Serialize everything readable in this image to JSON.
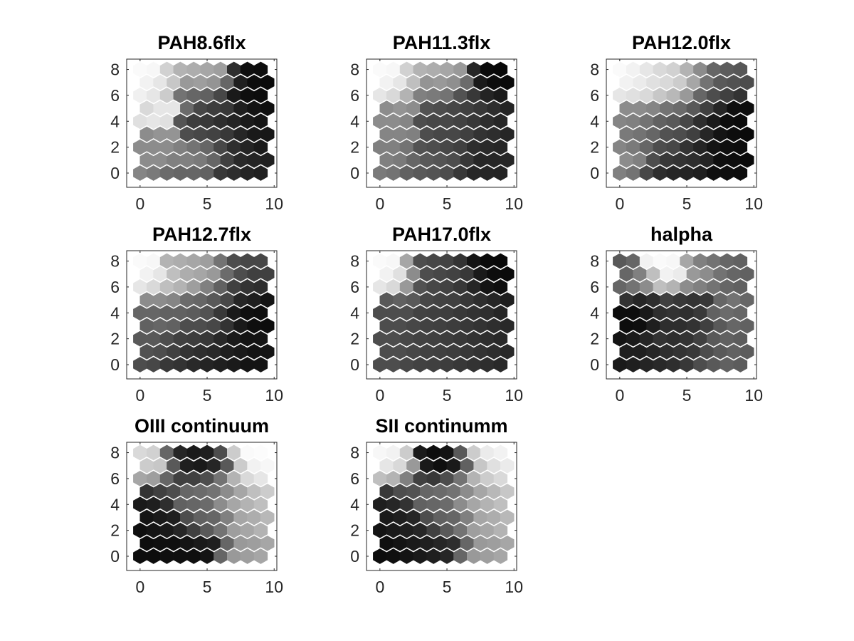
{
  "chart_data": {
    "type": "heatmap",
    "layout": "3x3 grid of hexagonal self-organizing-map component planes (grayscale)",
    "colormap": "gray",
    "grid_size": [
      10,
      9
    ],
    "xlim": [
      -1,
      10.2
    ],
    "ylim": [
      -1.1,
      8.8
    ],
    "xticks": [
      0,
      5,
      10
    ],
    "yticks": [
      0,
      2,
      4,
      6,
      8
    ],
    "panels": [
      {
        "title": "PAH8.6flx",
        "rows": [
          [
            0.98,
            0.97,
            0.82,
            0.7,
            0.68,
            0.65,
            0.62,
            0.18,
            0.06,
            0.05
          ],
          [
            0.95,
            0.9,
            0.78,
            0.6,
            0.62,
            0.58,
            0.4,
            0.12,
            0.05,
            0.04
          ],
          [
            0.94,
            0.9,
            0.8,
            0.45,
            0.4,
            0.38,
            0.28,
            0.1,
            0.06,
            0.05
          ],
          [
            0.85,
            0.9,
            0.9,
            0.42,
            0.28,
            0.24,
            0.22,
            0.12,
            0.08,
            0.06
          ],
          [
            0.88,
            0.9,
            0.88,
            0.33,
            0.24,
            0.22,
            0.18,
            0.14,
            0.1,
            0.08
          ],
          [
            0.55,
            0.58,
            0.58,
            0.3,
            0.28,
            0.26,
            0.22,
            0.15,
            0.1,
            0.09
          ],
          [
            0.55,
            0.55,
            0.55,
            0.5,
            0.45,
            0.4,
            0.28,
            0.18,
            0.14,
            0.1
          ],
          [
            0.55,
            0.55,
            0.5,
            0.5,
            0.48,
            0.4,
            0.25,
            0.16,
            0.14,
            0.12
          ],
          [
            0.52,
            0.48,
            0.42,
            0.4,
            0.4,
            0.38,
            0.22,
            0.18,
            0.14,
            0.12
          ]
        ]
      },
      {
        "title": "PAH11.3flx",
        "rows": [
          [
            0.98,
            0.97,
            0.82,
            0.7,
            0.68,
            0.65,
            0.6,
            0.15,
            0.04,
            0.03
          ],
          [
            0.95,
            0.9,
            0.75,
            0.58,
            0.6,
            0.56,
            0.42,
            0.1,
            0.05,
            0.04
          ],
          [
            0.9,
            0.85,
            0.7,
            0.5,
            0.48,
            0.45,
            0.32,
            0.22,
            0.14,
            0.1
          ],
          [
            0.55,
            0.58,
            0.55,
            0.32,
            0.3,
            0.28,
            0.25,
            0.22,
            0.18,
            0.14
          ],
          [
            0.55,
            0.55,
            0.52,
            0.3,
            0.28,
            0.28,
            0.26,
            0.22,
            0.18,
            0.15
          ],
          [
            0.52,
            0.52,
            0.5,
            0.3,
            0.28,
            0.28,
            0.25,
            0.2,
            0.18,
            0.15
          ],
          [
            0.5,
            0.5,
            0.45,
            0.32,
            0.3,
            0.28,
            0.25,
            0.18,
            0.16,
            0.15
          ],
          [
            0.5,
            0.48,
            0.4,
            0.35,
            0.33,
            0.3,
            0.22,
            0.15,
            0.15,
            0.15
          ],
          [
            0.48,
            0.45,
            0.38,
            0.35,
            0.33,
            0.3,
            0.22,
            0.15,
            0.15,
            0.14
          ]
        ]
      },
      {
        "title": "PAH12.0flx",
        "rows": [
          [
            0.98,
            0.95,
            0.9,
            0.85,
            0.82,
            0.7,
            0.55,
            0.4,
            0.36,
            0.34
          ],
          [
            0.95,
            0.92,
            0.88,
            0.85,
            0.8,
            0.65,
            0.45,
            0.35,
            0.32,
            0.3
          ],
          [
            0.9,
            0.88,
            0.85,
            0.78,
            0.72,
            0.6,
            0.4,
            0.3,
            0.25,
            0.2
          ],
          [
            0.55,
            0.55,
            0.52,
            0.45,
            0.42,
            0.35,
            0.25,
            0.15,
            0.06,
            0.05
          ],
          [
            0.52,
            0.5,
            0.45,
            0.38,
            0.35,
            0.28,
            0.18,
            0.1,
            0.05,
            0.04
          ],
          [
            0.48,
            0.45,
            0.4,
            0.32,
            0.3,
            0.25,
            0.15,
            0.08,
            0.05,
            0.04
          ],
          [
            0.52,
            0.48,
            0.4,
            0.3,
            0.28,
            0.2,
            0.14,
            0.08,
            0.06,
            0.05
          ],
          [
            0.55,
            0.5,
            0.3,
            0.22,
            0.2,
            0.18,
            0.14,
            0.06,
            0.05,
            0.04
          ],
          [
            0.5,
            0.45,
            0.28,
            0.18,
            0.15,
            0.14,
            0.12,
            0.06,
            0.06,
            0.05
          ]
        ]
      },
      {
        "title": "PAH12.7flx",
        "rows": [
          [
            0.98,
            0.97,
            0.7,
            0.68,
            0.65,
            0.62,
            0.45,
            0.3,
            0.28,
            0.28
          ],
          [
            0.95,
            0.9,
            0.75,
            0.68,
            0.65,
            0.6,
            0.42,
            0.3,
            0.25,
            0.25
          ],
          [
            0.9,
            0.85,
            0.75,
            0.7,
            0.62,
            0.5,
            0.38,
            0.25,
            0.2,
            0.18
          ],
          [
            0.55,
            0.55,
            0.52,
            0.42,
            0.4,
            0.35,
            0.28,
            0.15,
            0.12,
            0.08
          ],
          [
            0.4,
            0.4,
            0.38,
            0.38,
            0.36,
            0.32,
            0.22,
            0.1,
            0.06,
            0.05
          ],
          [
            0.38,
            0.4,
            0.38,
            0.3,
            0.3,
            0.28,
            0.2,
            0.1,
            0.06,
            0.05
          ],
          [
            0.35,
            0.35,
            0.3,
            0.25,
            0.24,
            0.22,
            0.16,
            0.1,
            0.08,
            0.08
          ],
          [
            0.32,
            0.3,
            0.25,
            0.2,
            0.18,
            0.16,
            0.12,
            0.1,
            0.08,
            0.08
          ],
          [
            0.3,
            0.28,
            0.22,
            0.2,
            0.16,
            0.14,
            0.12,
            0.1,
            0.08,
            0.08
          ]
        ]
      },
      {
        "title": "PAH17.0flx",
        "rows": [
          [
            0.98,
            0.97,
            0.65,
            0.3,
            0.28,
            0.26,
            0.2,
            0.08,
            0.04,
            0.03
          ],
          [
            0.95,
            0.88,
            0.55,
            0.3,
            0.28,
            0.26,
            0.22,
            0.1,
            0.05,
            0.04
          ],
          [
            0.9,
            0.85,
            0.6,
            0.32,
            0.28,
            0.26,
            0.22,
            0.15,
            0.08,
            0.06
          ],
          [
            0.35,
            0.38,
            0.35,
            0.28,
            0.26,
            0.25,
            0.22,
            0.18,
            0.15,
            0.12
          ],
          [
            0.3,
            0.3,
            0.3,
            0.26,
            0.25,
            0.24,
            0.22,
            0.2,
            0.18,
            0.15
          ],
          [
            0.3,
            0.3,
            0.28,
            0.26,
            0.25,
            0.24,
            0.22,
            0.2,
            0.18,
            0.16
          ],
          [
            0.3,
            0.3,
            0.28,
            0.26,
            0.25,
            0.24,
            0.22,
            0.2,
            0.18,
            0.16
          ],
          [
            0.3,
            0.3,
            0.28,
            0.26,
            0.25,
            0.24,
            0.22,
            0.2,
            0.18,
            0.16
          ],
          [
            0.3,
            0.3,
            0.28,
            0.26,
            0.25,
            0.24,
            0.22,
            0.2,
            0.18,
            0.16
          ]
        ]
      },
      {
        "title": "halpha",
        "rows": [
          [
            0.35,
            0.4,
            0.95,
            0.98,
            0.97,
            0.65,
            0.5,
            0.45,
            0.4,
            0.38
          ],
          [
            0.4,
            0.5,
            0.75,
            0.95,
            0.92,
            0.6,
            0.55,
            0.45,
            0.4,
            0.38
          ],
          [
            0.4,
            0.45,
            0.55,
            0.75,
            0.7,
            0.55,
            0.5,
            0.45,
            0.4,
            0.38
          ],
          [
            0.2,
            0.15,
            0.18,
            0.25,
            0.22,
            0.2,
            0.22,
            0.4,
            0.45,
            0.4
          ],
          [
            0.05,
            0.05,
            0.1,
            0.18,
            0.2,
            0.18,
            0.22,
            0.38,
            0.42,
            0.4
          ],
          [
            0.05,
            0.06,
            0.12,
            0.18,
            0.18,
            0.2,
            0.25,
            0.35,
            0.4,
            0.38
          ],
          [
            0.08,
            0.1,
            0.15,
            0.2,
            0.18,
            0.2,
            0.25,
            0.35,
            0.38,
            0.36
          ],
          [
            0.12,
            0.12,
            0.15,
            0.18,
            0.2,
            0.22,
            0.3,
            0.35,
            0.38,
            0.36
          ],
          [
            0.1,
            0.12,
            0.14,
            0.16,
            0.18,
            0.22,
            0.3,
            0.35,
            0.38,
            0.36
          ]
        ]
      },
      {
        "title": "OIII continuum",
        "rows": [
          [
            0.85,
            0.82,
            0.4,
            0.15,
            0.1,
            0.12,
            0.3,
            0.8,
            0.98,
            0.99
          ],
          [
            0.8,
            0.78,
            0.35,
            0.12,
            0.1,
            0.15,
            0.35,
            0.8,
            0.95,
            0.97
          ],
          [
            0.65,
            0.62,
            0.4,
            0.25,
            0.25,
            0.3,
            0.45,
            0.7,
            0.85,
            0.9
          ],
          [
            0.2,
            0.25,
            0.3,
            0.4,
            0.42,
            0.45,
            0.55,
            0.65,
            0.75,
            0.8
          ],
          [
            0.1,
            0.12,
            0.18,
            0.38,
            0.4,
            0.42,
            0.55,
            0.65,
            0.7,
            0.75
          ],
          [
            0.08,
            0.1,
            0.12,
            0.3,
            0.38,
            0.4,
            0.5,
            0.65,
            0.68,
            0.72
          ],
          [
            0.06,
            0.08,
            0.1,
            0.15,
            0.25,
            0.35,
            0.45,
            0.62,
            0.65,
            0.7
          ],
          [
            0.05,
            0.06,
            0.06,
            0.08,
            0.1,
            0.12,
            0.4,
            0.6,
            0.62,
            0.65
          ],
          [
            0.05,
            0.05,
            0.06,
            0.06,
            0.06,
            0.08,
            0.4,
            0.6,
            0.62,
            0.65
          ]
        ]
      },
      {
        "title": "SII continumm",
        "rows": [
          [
            0.97,
            0.95,
            0.8,
            0.1,
            0.05,
            0.08,
            0.35,
            0.8,
            0.92,
            0.95
          ],
          [
            0.9,
            0.85,
            0.6,
            0.1,
            0.06,
            0.1,
            0.38,
            0.78,
            0.88,
            0.92
          ],
          [
            0.75,
            0.7,
            0.5,
            0.25,
            0.22,
            0.3,
            0.45,
            0.7,
            0.8,
            0.85
          ],
          [
            0.22,
            0.3,
            0.32,
            0.4,
            0.42,
            0.45,
            0.55,
            0.65,
            0.72,
            0.78
          ],
          [
            0.12,
            0.15,
            0.2,
            0.38,
            0.4,
            0.42,
            0.55,
            0.65,
            0.7,
            0.75
          ],
          [
            0.1,
            0.12,
            0.15,
            0.3,
            0.38,
            0.4,
            0.5,
            0.65,
            0.68,
            0.72
          ],
          [
            0.08,
            0.1,
            0.12,
            0.15,
            0.25,
            0.35,
            0.45,
            0.62,
            0.65,
            0.7
          ],
          [
            0.06,
            0.08,
            0.1,
            0.12,
            0.15,
            0.18,
            0.4,
            0.6,
            0.62,
            0.65
          ],
          [
            0.05,
            0.06,
            0.08,
            0.1,
            0.12,
            0.15,
            0.4,
            0.6,
            0.62,
            0.65
          ]
        ]
      }
    ]
  }
}
